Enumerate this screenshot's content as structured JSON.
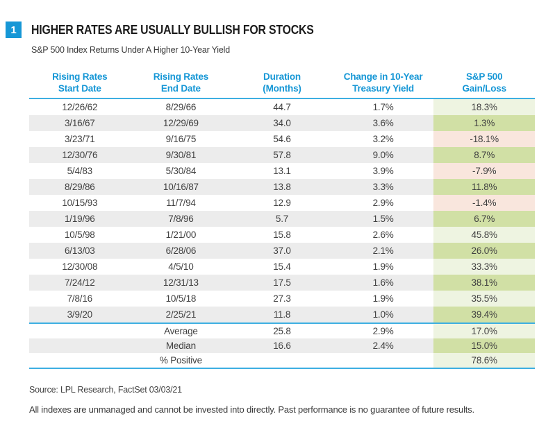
{
  "figure": {
    "number": "1",
    "title": "HIGHER RATES ARE USUALLY BULLISH FOR STOCKS",
    "subtitle": "S&P 500 Index Returns Under A Higher 10-Year Yield"
  },
  "colors": {
    "accent_blue": "#1697d6",
    "rule_blue": "#3dafe2",
    "stripe_gray": "#ececec",
    "gain_green_light": "#eef4e1",
    "gain_green_dark": "#d1e0a5",
    "loss_red_light": "#f9e6dd"
  },
  "table": {
    "columns": [
      {
        "line1": "Rising Rates",
        "line2": "Start Date"
      },
      {
        "line1": "Rising Rates",
        "line2": "End Date"
      },
      {
        "line1": "Duration",
        "line2": "(Months)"
      },
      {
        "line1": "Change in 10-Year",
        "line2": "Treasury Yield"
      },
      {
        "line1": "S&P 500",
        "line2": "Gain/Loss"
      }
    ],
    "rows": [
      {
        "start": "12/26/62",
        "end": "8/29/66",
        "duration": "44.7",
        "yield_change": "1.7%",
        "gain": "18.3%",
        "positive": true
      },
      {
        "start": "3/16/67",
        "end": "12/29/69",
        "duration": "34.0",
        "yield_change": "3.6%",
        "gain": "1.3%",
        "positive": true
      },
      {
        "start": "3/23/71",
        "end": "9/16/75",
        "duration": "54.6",
        "yield_change": "3.2%",
        "gain": "-18.1%",
        "positive": false
      },
      {
        "start": "12/30/76",
        "end": "9/30/81",
        "duration": "57.8",
        "yield_change": "9.0%",
        "gain": "8.7%",
        "positive": true
      },
      {
        "start": "5/4/83",
        "end": "5/30/84",
        "duration": "13.1",
        "yield_change": "3.9%",
        "gain": "-7.9%",
        "positive": false
      },
      {
        "start": "8/29/86",
        "end": "10/16/87",
        "duration": "13.8",
        "yield_change": "3.3%",
        "gain": "11.8%",
        "positive": true
      },
      {
        "start": "10/15/93",
        "end": "11/7/94",
        "duration": "12.9",
        "yield_change": "2.9%",
        "gain": "-1.4%",
        "positive": false
      },
      {
        "start": "1/19/96",
        "end": "7/8/96",
        "duration": "5.7",
        "yield_change": "1.5%",
        "gain": "6.7%",
        "positive": true
      },
      {
        "start": "10/5/98",
        "end": "1/21/00",
        "duration": "15.8",
        "yield_change": "2.6%",
        "gain": "45.8%",
        "positive": true
      },
      {
        "start": "6/13/03",
        "end": "6/28/06",
        "duration": "37.0",
        "yield_change": "2.1%",
        "gain": "26.0%",
        "positive": true
      },
      {
        "start": "12/30/08",
        "end": "4/5/10",
        "duration": "15.4",
        "yield_change": "1.9%",
        "gain": "33.3%",
        "positive": true
      },
      {
        "start": "7/24/12",
        "end": "12/31/13",
        "duration": "17.5",
        "yield_change": "1.6%",
        "gain": "38.1%",
        "positive": true
      },
      {
        "start": "7/8/16",
        "end": "10/5/18",
        "duration": "27.3",
        "yield_change": "1.9%",
        "gain": "35.5%",
        "positive": true
      },
      {
        "start": "3/9/20",
        "end": "2/25/21",
        "duration": "11.8",
        "yield_change": "1.0%",
        "gain": "39.4%",
        "positive": true
      }
    ],
    "summary": [
      {
        "label": "Average",
        "duration": "25.8",
        "yield_change": "2.9%",
        "gain": "17.0%",
        "positive": true
      },
      {
        "label": "Median",
        "duration": "16.6",
        "yield_change": "2.4%",
        "gain": "15.0%",
        "positive": true
      },
      {
        "label": "% Positive",
        "duration": "",
        "yield_change": "",
        "gain": "78.6%",
        "positive": true
      }
    ]
  },
  "footer": {
    "source": "Source: LPL Research, FactSet 03/03/21",
    "disclaimer": "All indexes are unmanaged and cannot be invested into directly. Past performance is no guarantee of future results."
  },
  "chart_data": {
    "type": "table",
    "title": "HIGHER RATES ARE USUALLY BULLISH FOR STOCKS",
    "subtitle": "S&P 500 Index Returns Under A Higher 10-Year Yield",
    "columns": [
      "Rising Rates Start Date",
      "Rising Rates End Date",
      "Duration (Months)",
      "Change in 10-Year Treasury Yield",
      "S&P 500 Gain/Loss"
    ],
    "rows": [
      [
        "12/26/62",
        "8/29/66",
        44.7,
        "1.7%",
        "18.3%"
      ],
      [
        "3/16/67",
        "12/29/69",
        34.0,
        "3.6%",
        "1.3%"
      ],
      [
        "3/23/71",
        "9/16/75",
        54.6,
        "3.2%",
        "-18.1%"
      ],
      [
        "12/30/76",
        "9/30/81",
        57.8,
        "9.0%",
        "8.7%"
      ],
      [
        "5/4/83",
        "5/30/84",
        13.1,
        "3.9%",
        "-7.9%"
      ],
      [
        "8/29/86",
        "10/16/87",
        13.8,
        "3.3%",
        "11.8%"
      ],
      [
        "10/15/93",
        "11/7/94",
        12.9,
        "2.9%",
        "-1.4%"
      ],
      [
        "1/19/96",
        "7/8/96",
        5.7,
        "1.5%",
        "6.7%"
      ],
      [
        "10/5/98",
        "1/21/00",
        15.8,
        "2.6%",
        "45.8%"
      ],
      [
        "6/13/03",
        "6/28/06",
        37.0,
        "2.1%",
        "26.0%"
      ],
      [
        "12/30/08",
        "4/5/10",
        15.4,
        "1.9%",
        "33.3%"
      ],
      [
        "7/24/12",
        "12/31/13",
        17.5,
        "1.6%",
        "38.1%"
      ],
      [
        "7/8/16",
        "10/5/18",
        27.3,
        "1.9%",
        "35.5%"
      ],
      [
        "3/9/20",
        "2/25/21",
        11.8,
        "1.0%",
        "39.4%"
      ]
    ],
    "summary_rows": [
      [
        "Average",
        25.8,
        "2.9%",
        "17.0%"
      ],
      [
        "Median",
        16.6,
        "2.4%",
        "15.0%"
      ],
      [
        "% Positive",
        null,
        null,
        "78.6%"
      ]
    ],
    "cell_highlight_rule": "S&P 500 Gain/Loss cell green when positive, red/pink when negative; shade alternates with row striping"
  }
}
